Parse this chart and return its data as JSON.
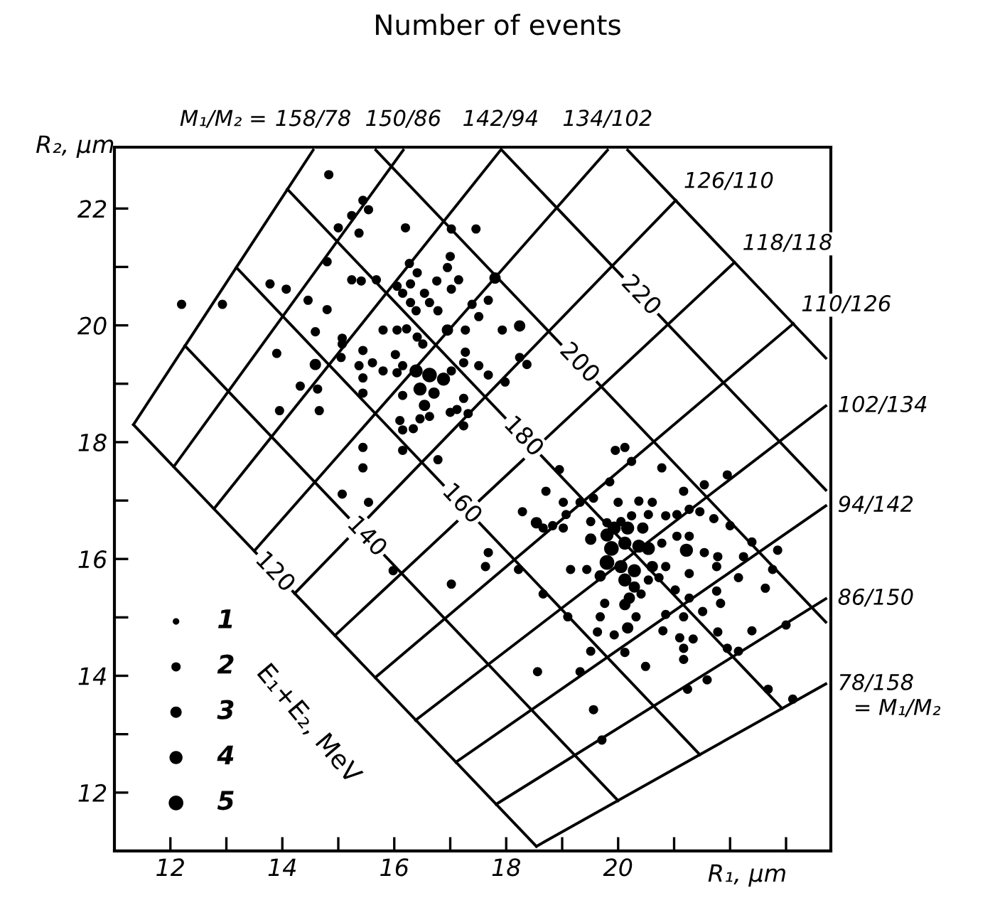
{
  "chart_data": {
    "type": "bubble",
    "title": "Number of events",
    "xlabel": "R₁, μm",
    "ylabel": "R₂, μm",
    "xlim": [
      11.0,
      23.8
    ],
    "ylim": [
      11.0,
      23.05
    ],
    "xticks": [
      12,
      {
        "value": 13,
        "label": null
      },
      14,
      {
        "value": 15,
        "label": null
      },
      16,
      {
        "value": 17,
        "label": null
      },
      18,
      {
        "value": 19,
        "label": null
      },
      20,
      {
        "value": 21,
        "label": null
      },
      {
        "value": 22,
        "label": null
      },
      {
        "value": 23,
        "label": null
      }
    ],
    "yticks": [
      12,
      {
        "value": 13,
        "label": null
      },
      14,
      {
        "value": 15,
        "label": null
      },
      16,
      {
        "value": 17,
        "label": null
      },
      18,
      {
        "value": 19,
        "label": null
      },
      20,
      {
        "value": 21,
        "label": null
      },
      22
    ],
    "grid": false,
    "size_legend": [
      1,
      2,
      3,
      4,
      5
    ],
    "annotations": [
      "M₁/M₂ =",
      "= M₁/M₂",
      "E₁+E₂, MeV",
      {
        "text": "158/78",
        "x": 14.55,
        "y": 23.0
      },
      {
        "text": "150/86",
        "x": 16.16,
        "y": 23.0
      },
      {
        "text": "142/94",
        "x": 17.9,
        "y": 23.0
      },
      {
        "text": "134/102",
        "x": 19.81,
        "y": 23.0
      },
      {
        "text": "126/110",
        "x": 21.03,
        "y": 22.14
      },
      {
        "text": "118/118",
        "x": 22.08,
        "y": 21.08
      },
      {
        "text": "110/126",
        "x": 23.13,
        "y": 20.03
      },
      {
        "text": "102/134",
        "x": 23.71,
        "y": 18.62
      },
      {
        "text": "94/142",
        "x": 23.71,
        "y": 16.91
      },
      {
        "text": "86/150",
        "x": 23.71,
        "y": 15.32
      },
      {
        "text": "78/158",
        "x": 23.71,
        "y": 13.86
      },
      {
        "text": "120",
        "x": 13.86,
        "y": 15.77
      },
      {
        "text": "140",
        "x": 15.5,
        "y": 16.38
      },
      {
        "text": "160",
        "x": 17.2,
        "y": 16.94
      },
      {
        "text": "180",
        "x": 18.3,
        "y": 18.09
      },
      {
        "text": "200",
        "x": 19.3,
        "y": 19.35
      },
      {
        "text": "220",
        "x": 20.4,
        "y": 20.51
      }
    ],
    "series": [
      {
        "type": "bubble",
        "color": "#000000",
        "x": [
          14.83,
          15.44,
          15.54,
          15.24,
          15.0,
          15.37,
          16.2,
          17.02,
          17.46,
          14.8,
          13.78,
          14.07,
          12.93,
          15.24,
          15.41,
          15.68,
          16.27,
          16.41,
          16.76,
          17.0,
          16.95,
          17.15,
          17.02,
          16.05,
          16.29,
          16.15,
          16.29,
          16.54,
          16.63,
          16.78,
          16.39,
          14.46,
          14.8,
          17.39,
          17.68,
          17.8,
          18.24,
          17.93,
          17.51,
          17.27,
          16.95,
          15.8,
          16.05,
          16.22,
          16.41,
          16.51,
          14.59,
          15.07,
          15.07,
          13.9,
          14.59,
          15.05,
          15.44,
          15.37,
          15.61,
          16.02,
          16.15,
          16.05,
          15.8,
          15.44,
          16.39,
          16.63,
          16.88,
          16.46,
          16.71,
          16.54,
          16.63,
          16.46,
          17.02,
          17.24,
          17.27,
          17.51,
          17.68,
          17.98,
          18.24,
          18.37,
          17.24,
          17.12,
          17.32,
          17.0,
          17.24,
          16.15,
          16.1,
          16.15,
          16.34,
          15.44,
          14.63,
          14.32,
          14.66,
          15.44,
          16.15,
          15.44,
          16.78,
          12.2,
          13.95,
          15.07,
          15.54,
          15.98,
          17.02,
          17.63,
          19.95,
          20.12,
          20.24,
          20.78,
          18.95,
          19.85,
          21.95,
          18.71,
          19.02,
          19.32,
          19.56,
          20.0,
          20.37,
          20.61,
          21.17,
          21.54,
          19.07,
          18.54,
          18.83,
          18.66,
          19.02,
          19.51,
          19.8,
          20.05,
          20.24,
          20.54,
          20.85,
          21.05,
          21.27,
          21.46,
          21.71,
          22.0,
          22.39,
          22.85,
          19.51,
          19.8,
          19.93,
          20.17,
          20.44,
          19.88,
          20.12,
          20.37,
          20.54,
          20.78,
          21.05,
          21.27,
          21.22,
          21.54,
          21.78,
          21.76,
          22.24,
          22.76,
          19.8,
          20.05,
          20.29,
          20.61,
          20.85,
          21.27,
          19.15,
          19.44,
          19.68,
          18.22,
          20.12,
          20.29,
          20.54,
          20.73,
          21.02,
          20.2,
          20.12,
          20.41,
          19.76,
          21.27,
          21.76,
          21.83,
          22.15,
          22.63,
          19.1,
          19.68,
          20.32,
          20.17,
          20.85,
          21.17,
          21.51,
          19.63,
          19.93,
          20.8,
          21.1,
          21.34,
          21.17,
          21.17,
          21.78,
          22.39,
          23.0,
          21.95,
          22.15,
          19.51,
          20.12,
          20.49,
          19.32,
          21.59,
          21.24,
          22.68,
          23.12,
          18.29,
          17.68,
          18.66,
          19.56,
          19.71,
          18.56
        ],
        "values": [
          22.58,
          22.14,
          21.98,
          21.88,
          21.67,
          21.58,
          21.67,
          21.65,
          21.65,
          21.09,
          20.71,
          20.62,
          20.36,
          20.78,
          20.76,
          20.78,
          21.06,
          20.9,
          20.76,
          21.18,
          20.99,
          20.78,
          20.62,
          20.67,
          20.71,
          20.55,
          20.39,
          20.55,
          20.39,
          20.25,
          20.25,
          20.43,
          20.27,
          20.36,
          20.43,
          20.81,
          19.99,
          19.92,
          20.15,
          19.92,
          19.92,
          19.92,
          19.92,
          19.94,
          19.8,
          19.68,
          19.89,
          19.78,
          19.68,
          19.52,
          19.33,
          19.45,
          19.57,
          19.31,
          19.36,
          19.5,
          19.31,
          19.19,
          19.22,
          19.1,
          19.22,
          19.15,
          19.08,
          18.91,
          18.84,
          18.63,
          18.44,
          18.4,
          19.22,
          19.36,
          19.54,
          19.31,
          19.15,
          19.03,
          19.45,
          19.33,
          18.75,
          18.56,
          18.49,
          18.51,
          18.28,
          18.8,
          18.37,
          18.21,
          18.23,
          18.84,
          18.91,
          18.96,
          18.54,
          17.91,
          17.86,
          17.56,
          17.7,
          20.36,
          18.54,
          17.11,
          16.97,
          15.8,
          15.57,
          15.87,
          17.86,
          17.91,
          17.67,
          17.56,
          17.53,
          17.32,
          17.44,
          17.16,
          16.97,
          16.97,
          17.04,
          16.97,
          16.99,
          16.97,
          17.16,
          17.27,
          16.76,
          16.62,
          16.57,
          16.53,
          16.53,
          16.64,
          16.62,
          16.64,
          16.74,
          16.76,
          16.74,
          16.76,
          16.85,
          16.81,
          16.69,
          16.57,
          16.29,
          16.15,
          16.34,
          16.41,
          16.53,
          16.53,
          16.53,
          16.18,
          16.27,
          16.22,
          16.18,
          16.27,
          16.39,
          16.39,
          16.15,
          16.11,
          16.04,
          15.87,
          16.04,
          15.82,
          15.94,
          15.87,
          15.8,
          15.87,
          15.87,
          15.75,
          15.82,
          15.82,
          15.71,
          15.82,
          15.64,
          15.52,
          15.64,
          15.68,
          15.47,
          15.33,
          15.22,
          15.4,
          15.24,
          15.33,
          15.45,
          15.24,
          15.68,
          15.5,
          15.01,
          15.01,
          15.01,
          14.82,
          15.05,
          15.01,
          15.1,
          14.75,
          14.7,
          14.77,
          14.65,
          14.63,
          14.47,
          14.28,
          14.75,
          14.77,
          14.87,
          14.47,
          14.42,
          14.42,
          14.4,
          14.16,
          14.07,
          13.93,
          13.77,
          13.77,
          13.6,
          16.81,
          16.11,
          15.4,
          13.42,
          12.9,
          14.07
        ],
        "sizes": [
          2,
          2,
          2,
          2,
          2,
          2,
          2,
          2,
          2,
          2,
          2,
          2,
          2,
          2,
          2,
          2,
          2,
          2,
          2,
          2,
          2,
          2,
          2,
          2,
          2,
          2,
          2,
          2,
          2,
          2,
          2,
          2,
          2,
          2,
          2,
          3,
          3,
          2,
          2,
          2,
          3,
          2,
          2,
          2,
          2,
          2,
          2,
          2,
          2,
          2,
          3,
          2,
          2,
          2,
          2,
          2,
          2,
          2,
          2,
          2,
          4,
          5,
          4,
          4,
          3,
          3,
          2,
          2,
          2,
          2,
          2,
          2,
          2,
          2,
          2,
          2,
          2,
          2,
          2,
          2,
          2,
          2,
          2,
          2,
          2,
          2,
          2,
          2,
          2,
          2,
          2,
          2,
          2,
          2,
          2,
          2,
          2,
          2,
          2,
          2,
          2,
          2,
          2,
          2,
          2,
          2,
          2,
          2,
          2,
          2,
          2,
          2,
          2,
          2,
          2,
          2,
          2,
          3,
          2,
          2,
          2,
          2,
          2,
          2,
          2,
          2,
          2,
          2,
          2,
          2,
          2,
          2,
          2,
          2,
          3,
          4,
          4,
          4,
          3,
          5,
          4,
          4,
          4,
          2,
          2,
          2,
          4,
          2,
          2,
          2,
          2,
          2,
          5,
          4,
          4,
          3,
          2,
          2,
          2,
          2,
          3,
          2,
          4,
          3,
          2,
          2,
          2,
          3,
          3,
          2,
          2,
          2,
          2,
          2,
          2,
          2,
          2,
          2,
          2,
          3,
          2,
          2,
          2,
          2,
          2,
          2,
          2,
          2,
          2,
          2,
          2,
          2,
          2,
          2,
          2,
          2,
          2,
          2,
          2,
          2,
          2,
          2,
          2,
          2,
          2,
          2,
          2,
          2,
          2
        ]
      },
      {
        "type": "line",
        "color": "#000000",
        "x": [
          11.34,
          14.55
        ],
        "values": [
          18.3,
          23.0
        ]
      },
      {
        "type": "line",
        "color": "#000000",
        "x": [
          12.06,
          16.16
        ],
        "values": [
          17.58,
          23.0
        ]
      },
      {
        "type": "line",
        "color": "#000000",
        "x": [
          12.78,
          17.9
        ],
        "values": [
          16.86,
          23.0
        ]
      },
      {
        "type": "line",
        "color": "#000000",
        "x": [
          13.5,
          19.81
        ],
        "values": [
          16.14,
          23.0
        ]
      },
      {
        "type": "line",
        "color": "#000000",
        "x": [
          14.22,
          21.03
        ],
        "values": [
          15.41,
          22.14
        ]
      },
      {
        "type": "line",
        "color": "#000000",
        "x": [
          14.94,
          22.08
        ],
        "values": [
          14.69,
          21.08
        ]
      },
      {
        "type": "line",
        "color": "#000000",
        "x": [
          15.66,
          23.13
        ],
        "values": [
          13.97,
          20.03
        ]
      },
      {
        "type": "line",
        "color": "#000000",
        "x": [
          16.38,
          23.71
        ],
        "values": [
          13.24,
          18.62
        ]
      },
      {
        "type": "line",
        "color": "#000000",
        "x": [
          17.1,
          23.71
        ],
        "values": [
          12.52,
          16.91
        ]
      },
      {
        "type": "line",
        "color": "#000000",
        "x": [
          17.82,
          23.71
        ],
        "values": [
          11.8,
          15.32
        ]
      },
      {
        "type": "line",
        "color": "#000000",
        "x": [
          18.54,
          23.71
        ],
        "values": [
          11.08,
          13.86
        ]
      },
      {
        "type": "line",
        "color": "#000000",
        "x": [
          11.34,
          18.54
        ],
        "values": [
          18.3,
          11.08
        ]
      },
      {
        "type": "line",
        "color": "#000000",
        "x": [
          12.26,
          20.0
        ],
        "values": [
          19.65,
          11.86
        ]
      },
      {
        "type": "line",
        "color": "#000000",
        "x": [
          13.18,
          21.46
        ],
        "values": [
          20.99,
          12.65
        ]
      },
      {
        "type": "line",
        "color": "#000000",
        "x": [
          14.09,
          22.93
        ],
        "values": [
          22.33,
          13.44
        ]
      },
      {
        "type": "line",
        "color": "#000000",
        "x": [
          15.67,
          23.71
        ],
        "values": [
          23.0,
          14.92
        ]
      },
      {
        "type": "line",
        "color": "#000000",
        "x": [
          17.92,
          23.71
        ],
        "values": [
          23.0,
          17.18
        ]
      },
      {
        "type": "line",
        "color": "#000000",
        "x": [
          20.17,
          23.71
        ],
        "values": [
          23.0,
          19.44
        ]
      }
    ]
  }
}
